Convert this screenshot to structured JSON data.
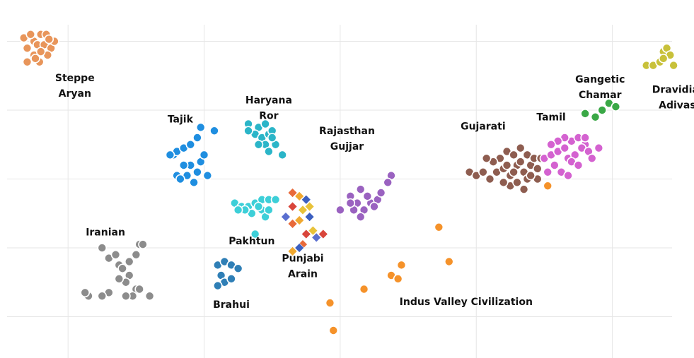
{
  "chart_data": {
    "type": "scatter",
    "title": "",
    "xlabel": "",
    "ylabel": "",
    "xlim": [
      -1.0,
      9.2
    ],
    "ylim": [
      -0.6,
      4.6
    ],
    "grid": true,
    "series": [
      {
        "name": "Steppe Aryan",
        "color": "#e8955a",
        "marker": "circle",
        "points": [
          [
            -0.65,
            4.05
          ],
          [
            -0.5,
            4.0
          ],
          [
            -0.4,
            4.1
          ],
          [
            -0.32,
            4.1
          ],
          [
            -0.55,
            4.1
          ],
          [
            -0.6,
            3.9
          ],
          [
            -0.45,
            3.95
          ],
          [
            -0.35,
            3.95
          ],
          [
            -0.25,
            3.9
          ],
          [
            -0.3,
            3.8
          ],
          [
            -0.5,
            3.8
          ],
          [
            -0.42,
            3.7
          ],
          [
            -0.6,
            3.7
          ],
          [
            -0.4,
            3.85
          ],
          [
            -0.2,
            4.0
          ],
          [
            -0.28,
            4.03
          ],
          [
            -0.48,
            3.75
          ]
        ]
      },
      {
        "name": "Tajik",
        "color": "#1f8ee0",
        "marker": "circle",
        "points": [
          [
            1.55,
            2.35
          ],
          [
            1.6,
            2.4
          ],
          [
            1.7,
            2.45
          ],
          [
            1.8,
            2.2
          ],
          [
            1.7,
            2.2
          ],
          [
            1.75,
            2.05
          ],
          [
            1.6,
            2.05
          ],
          [
            1.9,
            2.1
          ],
          [
            1.95,
            2.25
          ],
          [
            2.0,
            2.35
          ],
          [
            1.8,
            2.5
          ],
          [
            1.9,
            2.6
          ],
          [
            1.85,
            1.95
          ],
          [
            1.65,
            2.0
          ],
          [
            2.05,
            2.05
          ],
          [
            2.15,
            2.7
          ],
          [
            1.95,
            2.75
          ],
          [
            1.5,
            2.35
          ]
        ]
      },
      {
        "name": "Haryana Ror",
        "color": "#2bb5c8",
        "marker": "circle",
        "points": [
          [
            2.65,
            2.8
          ],
          [
            2.8,
            2.75
          ],
          [
            2.9,
            2.8
          ],
          [
            2.75,
            2.65
          ],
          [
            2.85,
            2.6
          ],
          [
            2.95,
            2.65
          ],
          [
            3.0,
            2.7
          ],
          [
            3.05,
            2.5
          ],
          [
            2.9,
            2.5
          ],
          [
            3.15,
            2.35
          ],
          [
            2.8,
            2.5
          ],
          [
            2.65,
            2.7
          ],
          [
            2.95,
            2.4
          ],
          [
            3.0,
            2.6
          ]
        ]
      },
      {
        "name": "Pakhtun",
        "color": "#3dcfd8",
        "marker": "circle",
        "points": [
          [
            2.45,
            1.65
          ],
          [
            2.55,
            1.6
          ],
          [
            2.65,
            1.6
          ],
          [
            2.75,
            1.65
          ],
          [
            2.85,
            1.7
          ],
          [
            2.95,
            1.7
          ],
          [
            3.05,
            1.7
          ],
          [
            2.85,
            1.55
          ],
          [
            2.7,
            1.5
          ],
          [
            2.6,
            1.55
          ],
          [
            2.9,
            1.45
          ],
          [
            2.75,
            1.2
          ],
          [
            2.95,
            1.55
          ],
          [
            2.5,
            1.55
          ],
          [
            2.8,
            1.6
          ]
        ]
      },
      {
        "name": "Punjabi Arain",
        "color": "#e86a3a",
        "marker": "diamond",
        "points": [
          [
            3.3,
            1.8
          ],
          [
            3.4,
            1.75
          ],
          [
            3.5,
            1.7
          ],
          [
            3.3,
            1.6
          ],
          [
            3.45,
            1.55
          ],
          [
            3.2,
            1.45
          ],
          [
            3.3,
            1.35
          ],
          [
            3.4,
            1.4
          ],
          [
            3.55,
            1.45
          ],
          [
            3.5,
            1.2
          ],
          [
            3.6,
            1.25
          ],
          [
            3.65,
            1.15
          ],
          [
            3.45,
            1.05
          ],
          [
            3.3,
            0.95
          ],
          [
            3.4,
            1.0
          ],
          [
            3.75,
            1.2
          ],
          [
            3.55,
            1.6
          ]
        ]
      },
      {
        "name": "Rajasthan Gujjar",
        "color": "#9a62c0",
        "marker": "circle",
        "points": [
          [
            4.0,
            1.55
          ],
          [
            4.15,
            1.75
          ],
          [
            4.25,
            1.65
          ],
          [
            4.35,
            1.55
          ],
          [
            4.45,
            1.65
          ],
          [
            4.55,
            1.7
          ],
          [
            4.6,
            1.8
          ],
          [
            4.3,
            1.45
          ],
          [
            4.2,
            1.55
          ],
          [
            4.4,
            1.75
          ],
          [
            4.3,
            1.85
          ],
          [
            4.75,
            2.05
          ],
          [
            4.7,
            1.95
          ],
          [
            4.5,
            1.6
          ],
          [
            4.15,
            1.65
          ]
        ]
      },
      {
        "name": "Gujarati",
        "color": "#8e5d50",
        "marker": "circle",
        "points": [
          [
            5.9,
            2.1
          ],
          [
            6.0,
            2.05
          ],
          [
            6.1,
            2.1
          ],
          [
            6.2,
            2.0
          ],
          [
            6.3,
            2.1
          ],
          [
            6.4,
            2.15
          ],
          [
            6.5,
            2.05
          ],
          [
            6.6,
            2.2
          ],
          [
            6.7,
            2.1
          ],
          [
            6.8,
            2.2
          ],
          [
            6.9,
            2.15
          ],
          [
            6.45,
            2.4
          ],
          [
            6.55,
            2.35
          ],
          [
            6.65,
            2.45
          ],
          [
            6.75,
            2.35
          ],
          [
            6.85,
            2.3
          ],
          [
            6.35,
            2.3
          ],
          [
            6.25,
            2.25
          ],
          [
            6.5,
            1.9
          ],
          [
            6.6,
            1.95
          ],
          [
            6.7,
            1.85
          ],
          [
            6.75,
            2.0
          ],
          [
            6.9,
            2.0
          ],
          [
            6.95,
            2.3
          ],
          [
            6.55,
            2.1
          ],
          [
            6.4,
            1.95
          ],
          [
            6.65,
            2.25
          ],
          [
            6.8,
            2.05
          ],
          [
            6.45,
            2.2
          ],
          [
            6.15,
            2.3
          ]
        ]
      },
      {
        "name": "Tamil",
        "color": "#d462d0",
        "marker": "circle",
        "points": [
          [
            7.0,
            2.3
          ],
          [
            7.1,
            2.35
          ],
          [
            7.2,
            2.4
          ],
          [
            7.3,
            2.45
          ],
          [
            7.4,
            2.55
          ],
          [
            7.5,
            2.6
          ],
          [
            7.6,
            2.5
          ],
          [
            7.15,
            2.2
          ],
          [
            7.05,
            2.1
          ],
          [
            7.25,
            2.1
          ],
          [
            7.35,
            2.3
          ],
          [
            7.45,
            2.35
          ],
          [
            7.55,
            2.45
          ],
          [
            7.65,
            2.4
          ],
          [
            7.8,
            2.45
          ],
          [
            7.3,
            2.6
          ],
          [
            7.2,
            2.55
          ],
          [
            7.1,
            2.5
          ],
          [
            7.4,
            2.25
          ],
          [
            7.5,
            2.2
          ],
          [
            7.35,
            2.05
          ],
          [
            7.6,
            2.6
          ],
          [
            7.7,
            2.3
          ]
        ]
      },
      {
        "name": "Gangetic Chamar",
        "color": "#3aa846",
        "marker": "circle",
        "points": [
          [
            7.6,
            2.95
          ],
          [
            7.75,
            2.9
          ],
          [
            7.85,
            3.0
          ],
          [
            7.95,
            3.1
          ],
          [
            8.05,
            3.05
          ]
        ]
      },
      {
        "name": "Dravidian Adivasi",
        "color": "#c8c13a",
        "marker": "circle",
        "points": [
          [
            8.5,
            3.65
          ],
          [
            8.6,
            3.65
          ],
          [
            8.7,
            3.7
          ],
          [
            8.75,
            3.85
          ],
          [
            8.8,
            3.9
          ],
          [
            8.85,
            3.8
          ],
          [
            8.9,
            3.65
          ],
          [
            8.75,
            3.75
          ]
        ]
      },
      {
        "name": "Iranian",
        "color": "#8c8c8c",
        "marker": "circle",
        "points": [
          [
            0.5,
            1.0
          ],
          [
            0.6,
            0.85
          ],
          [
            0.7,
            0.9
          ],
          [
            0.75,
            0.75
          ],
          [
            0.8,
            0.7
          ],
          [
            0.9,
            0.8
          ],
          [
            1.0,
            0.9
          ],
          [
            0.9,
            0.6
          ],
          [
            0.85,
            0.5
          ],
          [
            1.0,
            0.4
          ],
          [
            0.95,
            0.3
          ],
          [
            1.05,
            0.4
          ],
          [
            0.85,
            0.3
          ],
          [
            0.6,
            0.35
          ],
          [
            0.5,
            0.3
          ],
          [
            0.3,
            0.3
          ],
          [
            0.25,
            0.35
          ],
          [
            1.05,
            1.05
          ],
          [
            1.1,
            1.05
          ],
          [
            1.2,
            0.3
          ],
          [
            0.75,
            0.55
          ]
        ]
      },
      {
        "name": "Brahui",
        "color": "#2f7fb6",
        "marker": "circle",
        "points": [
          [
            2.2,
            0.75
          ],
          [
            2.3,
            0.8
          ],
          [
            2.4,
            0.75
          ],
          [
            2.5,
            0.7
          ],
          [
            2.25,
            0.6
          ],
          [
            2.3,
            0.5
          ],
          [
            2.4,
            0.55
          ],
          [
            2.2,
            0.45
          ]
        ]
      },
      {
        "name": "Indus Valley Civilization",
        "color": "#f5922a",
        "marker": "circle",
        "points": [
          [
            3.85,
            0.2
          ],
          [
            3.9,
            -0.2
          ],
          [
            4.35,
            0.4
          ],
          [
            4.75,
            0.6
          ],
          [
            4.85,
            0.55
          ],
          [
            4.9,
            0.75
          ],
          [
            5.45,
            1.3
          ],
          [
            5.6,
            0.8
          ],
          [
            7.05,
            1.9
          ]
        ]
      }
    ],
    "annotations": [
      {
        "id": "steppe",
        "lines": [
          "Steppe",
          "Aryan"
        ],
        "x": 0.1,
        "y": 3.42,
        "align": "middle"
      },
      {
        "id": "tajik",
        "lines": [
          "Tajik"
        ],
        "x": 1.65,
        "y": 2.82,
        "align": "middle"
      },
      {
        "id": "haryana",
        "lines": [
          "Haryana",
          "Ror"
        ],
        "x": 2.95,
        "y": 3.1,
        "align": "middle"
      },
      {
        "id": "rajasthan",
        "lines": [
          "Rajasthan",
          "Gujjar"
        ],
        "x": 4.1,
        "y": 2.65,
        "align": "middle"
      },
      {
        "id": "gujarati",
        "lines": [
          "Gujarati"
        ],
        "x": 6.1,
        "y": 2.72,
        "align": "middle"
      },
      {
        "id": "tamil",
        "lines": [
          "Tamil"
        ],
        "x": 7.1,
        "y": 2.85,
        "align": "middle"
      },
      {
        "id": "gangetic",
        "lines": [
          "Gangetic",
          "Chamar"
        ],
        "x": 7.82,
        "y": 3.4,
        "align": "middle"
      },
      {
        "id": "dravidian",
        "lines": [
          "Dravidian",
          "Adivasi"
        ],
        "x": 8.98,
        "y": 3.25,
        "align": "middle"
      },
      {
        "id": "pakhtun",
        "lines": [
          "Pakhtun"
        ],
        "x": 2.7,
        "y": 1.05,
        "align": "middle"
      },
      {
        "id": "punjabi",
        "lines": [
          "Punjabi",
          "Arain"
        ],
        "x": 3.45,
        "y": 0.8,
        "align": "middle"
      },
      {
        "id": "iranian",
        "lines": [
          "Iranian"
        ],
        "x": 0.55,
        "y": 1.18,
        "align": "middle"
      },
      {
        "id": "brahui",
        "lines": [
          "Brahui"
        ],
        "x": 2.4,
        "y": 0.13,
        "align": "middle"
      },
      {
        "id": "ivc",
        "lines": [
          "Indus Valley Civilization"
        ],
        "x": 5.85,
        "y": 0.17,
        "align": "middle"
      }
    ]
  }
}
